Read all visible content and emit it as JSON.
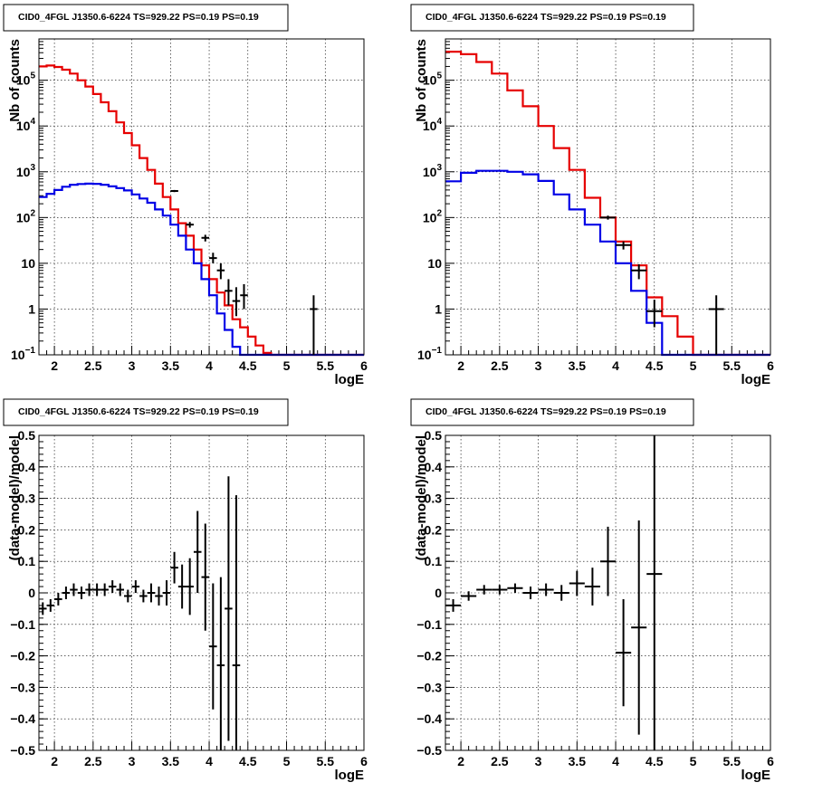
{
  "chart_data": [
    {
      "id": "top-left",
      "type": "step-histogram",
      "title": "CID0_4FGL J1350.6-6224 TS=929.22 PS=0.19 PS=0.19",
      "xlabel": "logE",
      "ylabel": "Nb of counts",
      "log_y": true,
      "xlim": [
        1.8,
        6.0
      ],
      "ylim": [
        0.1,
        800000
      ],
      "grid": true,
      "x_ticks": [
        "2",
        "2.5",
        "3",
        "3.5",
        "4",
        "4.5",
        "5",
        "5.5",
        "6"
      ],
      "y_ticks": [
        {
          "v": 0.1,
          "label": "10",
          "sup": "−1"
        },
        {
          "v": 1,
          "label": "1",
          "sup": ""
        },
        {
          "v": 10,
          "label": "10",
          "sup": ""
        },
        {
          "v": 100,
          "label": "10",
          "sup": "2"
        },
        {
          "v": 1000,
          "label": "10",
          "sup": "3"
        },
        {
          "v": 10000,
          "label": "10",
          "sup": "4"
        },
        {
          "v": 100000,
          "label": "10",
          "sup": "5"
        }
      ],
      "bin_edges": [
        1.8,
        1.9,
        2.0,
        2.1,
        2.2,
        2.3,
        2.4,
        2.5,
        2.6,
        2.7,
        2.8,
        2.9,
        3.0,
        3.1,
        3.2,
        3.3,
        3.4,
        3.5,
        3.6,
        3.7,
        3.8,
        3.9,
        4.0,
        4.1,
        4.2,
        4.3,
        4.4,
        4.5,
        4.6,
        4.7,
        4.8,
        4.9,
        5.0,
        6.0
      ],
      "series": [
        {
          "color": "#e60000",
          "values": [
            200000,
            210000,
            195000,
            170000,
            140000,
            100000,
            73000,
            50000,
            33000,
            21000,
            12000,
            7000,
            3800,
            2000,
            1100,
            550,
            280,
            150,
            75,
            40,
            20,
            9,
            4.5,
            2.3,
            1.2,
            0.6,
            0.4,
            0.25,
            0.16,
            0.11,
            0.1,
            0.1,
            0.1
          ]
        },
        {
          "color": "#0000e6",
          "values": [
            280,
            330,
            400,
            470,
            520,
            540,
            550,
            545,
            520,
            480,
            440,
            390,
            320,
            260,
            210,
            150,
            110,
            70,
            40,
            20,
            10,
            4.5,
            2,
            0.8,
            0.35,
            0.15,
            0.1,
            0.1,
            0.1,
            0.1,
            0.1,
            0.1,
            0.1
          ]
        }
      ],
      "points": [
        {
          "x": 3.55,
          "y": 380,
          "ylo": 360,
          "yhi": 400,
          "xerr": 0.05
        },
        {
          "x": 3.75,
          "y": 70,
          "ylo": 60,
          "yhi": 80,
          "xerr": 0.05
        },
        {
          "x": 3.95,
          "y": 36,
          "ylo": 30,
          "yhi": 42,
          "xerr": 0.05
        },
        {
          "x": 4.05,
          "y": 13,
          "ylo": 10,
          "yhi": 17,
          "xerr": 0.05
        },
        {
          "x": 4.15,
          "y": 7,
          "ylo": 4.5,
          "yhi": 10,
          "xerr": 0.05
        },
        {
          "x": 4.25,
          "y": 2.5,
          "ylo": 1.2,
          "yhi": 4.5,
          "xerr": 0.05
        },
        {
          "x": 4.35,
          "y": 1.5,
          "ylo": 0.7,
          "yhi": 3,
          "xerr": 0.05
        },
        {
          "x": 4.45,
          "y": 2,
          "ylo": 1,
          "yhi": 3.5,
          "xerr": 0.05
        },
        {
          "x": 5.35,
          "y": 1,
          "ylo": 0.1,
          "yhi": 2,
          "xerr": 0.05
        }
      ]
    },
    {
      "id": "top-right",
      "type": "step-histogram",
      "title": "CID0_4FGL J1350.6-6224 TS=929.22 PS=0.19 PS=0.19",
      "xlabel": "logE",
      "ylabel": "Nb of counts",
      "log_y": true,
      "xlim": [
        1.8,
        6.0
      ],
      "ylim": [
        0.1,
        800000
      ],
      "grid": true,
      "x_ticks": [
        "2",
        "2.5",
        "3",
        "3.5",
        "4",
        "4.5",
        "5",
        "5.5",
        "6"
      ],
      "y_ticks": [
        {
          "v": 0.1,
          "label": "10",
          "sup": "−1"
        },
        {
          "v": 1,
          "label": "1",
          "sup": ""
        },
        {
          "v": 10,
          "label": "10",
          "sup": ""
        },
        {
          "v": 100,
          "label": "10",
          "sup": "2"
        },
        {
          "v": 1000,
          "label": "10",
          "sup": "3"
        },
        {
          "v": 10000,
          "label": "10",
          "sup": "4"
        },
        {
          "v": 100000,
          "label": "10",
          "sup": "5"
        }
      ],
      "bin_edges": [
        1.8,
        2.0,
        2.2,
        2.4,
        2.6,
        2.8,
        3.0,
        3.2,
        3.4,
        3.6,
        3.8,
        4.0,
        4.2,
        4.4,
        4.6,
        4.8,
        5.0,
        6.0
      ],
      "series": [
        {
          "color": "#e60000",
          "values": [
            420000,
            370000,
            250000,
            140000,
            60000,
            27000,
            10000,
            3300,
            1100,
            270,
            100,
            30,
            9,
            1.8,
            0.7,
            0.25,
            0.1
          ]
        },
        {
          "color": "#0000e6",
          "values": [
            620,
            950,
            1050,
            1050,
            1000,
            880,
            630,
            320,
            150,
            70,
            30,
            10,
            2.5,
            0.5,
            0.1,
            0.1,
            0.1
          ]
        }
      ],
      "points": [
        {
          "x": 3.9,
          "y": 100,
          "ylo": 90,
          "yhi": 110,
          "xerr": 0.1
        },
        {
          "x": 4.1,
          "y": 25,
          "ylo": 20,
          "yhi": 30,
          "xerr": 0.1
        },
        {
          "x": 4.3,
          "y": 7,
          "ylo": 4.5,
          "yhi": 9.5,
          "xerr": 0.1
        },
        {
          "x": 4.5,
          "y": 0.9,
          "ylo": 0.4,
          "yhi": 1.6,
          "xerr": 0.1
        },
        {
          "x": 5.3,
          "y": 1,
          "ylo": 0.1,
          "yhi": 2,
          "xerr": 0.1
        }
      ]
    },
    {
      "id": "bottom-left",
      "type": "scatter-errorbars",
      "title": "CID0_4FGL J1350.6-6224 TS=929.22 PS=0.19 PS=0.19",
      "xlabel": "logE",
      "ylabel": "(data-model)/model",
      "log_y": false,
      "xlim": [
        1.8,
        6.0
      ],
      "ylim": [
        -0.5,
        0.5
      ],
      "grid": true,
      "x_ticks": [
        "2",
        "2.5",
        "3",
        "3.5",
        "4",
        "4.5",
        "5",
        "5.5",
        "6"
      ],
      "y_ticks": [
        "−0.5",
        "−0.4",
        "−0.3",
        "−0.2",
        "−0.1",
        "0",
        "0.1",
        "0.2",
        "0.3",
        "0.4",
        "0.5"
      ],
      "points": [
        {
          "x": 1.85,
          "y": -0.05,
          "err": 0.02,
          "xerr": 0.05
        },
        {
          "x": 1.95,
          "y": -0.04,
          "err": 0.02,
          "xerr": 0.05
        },
        {
          "x": 2.05,
          "y": -0.02,
          "err": 0.02,
          "xerr": 0.05
        },
        {
          "x": 2.15,
          "y": 0.0,
          "err": 0.02,
          "xerr": 0.05
        },
        {
          "x": 2.25,
          "y": 0.01,
          "err": 0.02,
          "xerr": 0.05
        },
        {
          "x": 2.35,
          "y": 0.0,
          "err": 0.02,
          "xerr": 0.05
        },
        {
          "x": 2.45,
          "y": 0.01,
          "err": 0.02,
          "xerr": 0.05
        },
        {
          "x": 2.55,
          "y": 0.01,
          "err": 0.02,
          "xerr": 0.05
        },
        {
          "x": 2.65,
          "y": 0.01,
          "err": 0.02,
          "xerr": 0.05
        },
        {
          "x": 2.75,
          "y": 0.02,
          "err": 0.02,
          "xerr": 0.05
        },
        {
          "x": 2.85,
          "y": 0.01,
          "err": 0.02,
          "xerr": 0.05
        },
        {
          "x": 2.95,
          "y": -0.01,
          "err": 0.02,
          "xerr": 0.05
        },
        {
          "x": 3.05,
          "y": 0.02,
          "err": 0.02,
          "xerr": 0.05
        },
        {
          "x": 3.15,
          "y": -0.01,
          "err": 0.02,
          "xerr": 0.05
        },
        {
          "x": 3.25,
          "y": 0.0,
          "err": 0.03,
          "xerr": 0.05
        },
        {
          "x": 3.35,
          "y": -0.01,
          "err": 0.03,
          "xerr": 0.05
        },
        {
          "x": 3.45,
          "y": 0.0,
          "err": 0.04,
          "xerr": 0.05
        },
        {
          "x": 3.55,
          "y": 0.08,
          "err": 0.05,
          "xerr": 0.05
        },
        {
          "x": 3.65,
          "y": 0.02,
          "err": 0.07,
          "xerr": 0.05
        },
        {
          "x": 3.75,
          "y": 0.02,
          "err": 0.09,
          "xerr": 0.05
        },
        {
          "x": 3.85,
          "y": 0.13,
          "err": 0.13,
          "xerr": 0.05
        },
        {
          "x": 3.95,
          "y": 0.05,
          "err": 0.17,
          "xerr": 0.05
        },
        {
          "x": 4.05,
          "y": -0.17,
          "err": 0.2,
          "xerr": 0.05
        },
        {
          "x": 4.15,
          "y": -0.23,
          "err": 0.28,
          "xerr": 0.05
        },
        {
          "x": 4.25,
          "y": -0.05,
          "err": 0.42,
          "xerr": 0.05
        },
        {
          "x": 4.35,
          "y": -0.23,
          "err": 0.54,
          "xerr": 0.05
        }
      ]
    },
    {
      "id": "bottom-right",
      "type": "scatter-errorbars",
      "title": "CID0_4FGL J1350.6-6224 TS=929.22 PS=0.19 PS=0.19",
      "xlabel": "logE",
      "ylabel": "(data-model)/model",
      "log_y": false,
      "xlim": [
        1.8,
        6.0
      ],
      "ylim": [
        -0.5,
        0.5
      ],
      "grid": true,
      "x_ticks": [
        "2",
        "2.5",
        "3",
        "3.5",
        "4",
        "4.5",
        "5",
        "5.5",
        "6"
      ],
      "y_ticks": [
        "−0.5",
        "−0.4",
        "−0.3",
        "−0.2",
        "−0.1",
        "0",
        "0.1",
        "0.2",
        "0.3",
        "0.4",
        "0.5"
      ],
      "points": [
        {
          "x": 1.9,
          "y": -0.04,
          "err": 0.02,
          "xerr": 0.1
        },
        {
          "x": 2.1,
          "y": -0.01,
          "err": 0.015,
          "xerr": 0.1
        },
        {
          "x": 2.3,
          "y": 0.01,
          "err": 0.015,
          "xerr": 0.1
        },
        {
          "x": 2.5,
          "y": 0.01,
          "err": 0.015,
          "xerr": 0.1
        },
        {
          "x": 2.7,
          "y": 0.015,
          "err": 0.015,
          "xerr": 0.1
        },
        {
          "x": 2.9,
          "y": 0.0,
          "err": 0.02,
          "xerr": 0.1
        },
        {
          "x": 3.1,
          "y": 0.01,
          "err": 0.02,
          "xerr": 0.1
        },
        {
          "x": 3.3,
          "y": 0.0,
          "err": 0.025,
          "xerr": 0.1
        },
        {
          "x": 3.5,
          "y": 0.03,
          "err": 0.04,
          "xerr": 0.1
        },
        {
          "x": 3.7,
          "y": 0.02,
          "err": 0.06,
          "xerr": 0.1
        },
        {
          "x": 3.9,
          "y": 0.1,
          "err": 0.11,
          "xerr": 0.1
        },
        {
          "x": 4.1,
          "y": -0.19,
          "err": 0.17,
          "xerr": 0.1
        },
        {
          "x": 4.3,
          "y": -0.11,
          "err": 0.34,
          "xerr": 0.1
        },
        {
          "x": 4.5,
          "y": 0.06,
          "err": 0.62,
          "xerr": 0.1
        }
      ]
    }
  ]
}
